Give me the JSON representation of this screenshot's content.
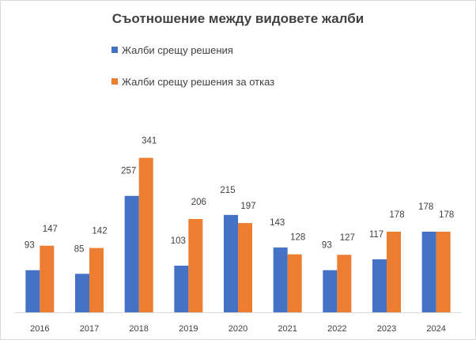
{
  "chart_data": {
    "type": "bar",
    "title": "Съотношение между видовете жалби",
    "categories": [
      "2016",
      "2017",
      "2018",
      "2019",
      "2020",
      "2021",
      "2022",
      "2023",
      "2024"
    ],
    "series": [
      {
        "name": "Жалби срещу решения",
        "color": "#4472c4",
        "values": [
          93,
          85,
          257,
          103,
          215,
          143,
          93,
          117,
          178
        ]
      },
      {
        "name": "Жалби срещу решения за  отказ",
        "color": "#ed7d31",
        "values": [
          147,
          142,
          341,
          206,
          197,
          128,
          127,
          178,
          178
        ]
      }
    ],
    "xlabel": "",
    "ylabel": "",
    "ylim": [
      0,
      400
    ],
    "legend_position": "top-left",
    "grid": false
  }
}
